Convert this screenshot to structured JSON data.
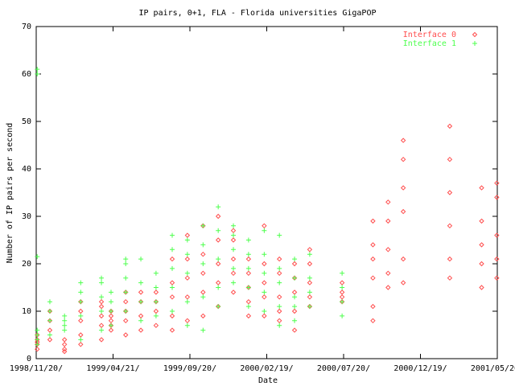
{
  "chart_data": {
    "type": "scatter",
    "title": "IP pairs, 0+1, FLA - Florida universities GigaPOP",
    "x_label": "Date",
    "y_label": "Number of IP pairs per second",
    "xlim": [
      "1998/11/20",
      "2001/05/20"
    ],
    "xticks": [
      {
        "value": "1998/11/20",
        "label": "1998/11/20/"
      },
      {
        "value": "1999/04/21",
        "label": "1999/04/21/"
      },
      {
        "value": "1999/09/20",
        "label": "1999/09/20/"
      },
      {
        "value": "2000/02/19",
        "label": "2000/02/19/"
      },
      {
        "value": "2000/07/20",
        "label": "2000/07/20/"
      },
      {
        "value": "2000/12/19",
        "label": "2000/12/19/"
      },
      {
        "value": "2001/05/20",
        "label": "2001/05/20/"
      }
    ],
    "ylim": [
      0,
      70
    ],
    "yticks": [
      0,
      10,
      20,
      30,
      40,
      50,
      60,
      70
    ],
    "legend": "top-right",
    "series": [
      {
        "name": "Interface 0",
        "color": "#ff4d4d",
        "marker": "diamond",
        "x": [
          "1998/11/22",
          "1998/11/22",
          "1998/11/22",
          "1998/11/22",
          "1998/11/22",
          "1998/12/17",
          "1998/12/17",
          "1998/12/17",
          "1998/12/17",
          "1999/01/15",
          "1999/01/15",
          "1999/01/15",
          "1999/01/15",
          "1999/02/16",
          "1999/02/16",
          "1999/02/16",
          "1999/02/16",
          "1999/02/16",
          "1999/03/29",
          "1999/03/29",
          "1999/03/29",
          "1999/03/29",
          "1999/03/29",
          "1999/04/17",
          "1999/04/17",
          "1999/04/17",
          "1999/04/17",
          "1999/04/17",
          "1999/05/16",
          "1999/05/16",
          "1999/05/16",
          "1999/05/16",
          "1999/05/16",
          "1999/06/15",
          "1999/06/15",
          "1999/06/15",
          "1999/06/15",
          "1999/07/15",
          "1999/07/15",
          "1999/07/15",
          "1999/07/15",
          "1999/08/16",
          "1999/08/16",
          "1999/08/16",
          "1999/08/16",
          "1999/08/16",
          "1999/09/15",
          "1999/09/15",
          "1999/09/15",
          "1999/09/15",
          "1999/09/15",
          "1999/10/16",
          "1999/10/16",
          "1999/10/16",
          "1999/10/16",
          "1999/10/16",
          "1999/11/15",
          "1999/11/15",
          "1999/11/15",
          "1999/11/15",
          "1999/11/15",
          "1999/12/15",
          "1999/12/15",
          "1999/12/15",
          "1999/12/15",
          "1999/12/15",
          "2000/01/14",
          "2000/01/14",
          "2000/01/14",
          "2000/01/14",
          "2000/01/14",
          "2000/02/14",
          "2000/02/14",
          "2000/02/14",
          "2000/02/14",
          "2000/02/14",
          "2000/03/15",
          "2000/03/15",
          "2000/03/15",
          "2000/03/15",
          "2000/03/15",
          "2000/04/14",
          "2000/04/14",
          "2000/04/14",
          "2000/04/14",
          "2000/04/14",
          "2000/05/14",
          "2000/05/14",
          "2000/05/14",
          "2000/05/14",
          "2000/05/14",
          "2000/07/17",
          "2000/07/17",
          "2000/07/17",
          "2000/07/17",
          "2000/09/16",
          "2000/09/16",
          "2000/09/16",
          "2000/09/16",
          "2000/09/16",
          "2000/09/16",
          "2000/10/16",
          "2000/10/16",
          "2000/10/16",
          "2000/10/16",
          "2000/10/16",
          "2000/11/15",
          "2000/11/15",
          "2000/11/15",
          "2000/11/15",
          "2000/11/15",
          "2000/11/15",
          "2001/02/15",
          "2001/02/15",
          "2001/02/15",
          "2001/02/15",
          "2001/02/15",
          "2001/02/15",
          "2001/04/19",
          "2001/04/19",
          "2001/04/19",
          "2001/04/19",
          "2001/04/19",
          "2001/05/19",
          "2001/05/19",
          "2001/05/19",
          "2001/05/19",
          "2001/05/19"
        ],
        "values": [
          2,
          3,
          3.5,
          4,
          5,
          4,
          6,
          8,
          10,
          1.5,
          2,
          3,
          4,
          3,
          5,
          8,
          10,
          12,
          4,
          7,
          9,
          11,
          12,
          6,
          7,
          8,
          9,
          10,
          5,
          8,
          10,
          12,
          14,
          6,
          9,
          12,
          14,
          7,
          10,
          12,
          14,
          6,
          9,
          13,
          16,
          21,
          8,
          13,
          17,
          21,
          26,
          9,
          14,
          18,
          22,
          28,
          11,
          16,
          20,
          25,
          30,
          14,
          18,
          21,
          25,
          27,
          9,
          12,
          15,
          18,
          21,
          9,
          13,
          16,
          20,
          28,
          8,
          10,
          13,
          18,
          21,
          6,
          10,
          14,
          17,
          20,
          11,
          13,
          16,
          20,
          23,
          12,
          13,
          14,
          16,
          8,
          11,
          17,
          21,
          24,
          29,
          15,
          18,
          23,
          29,
          33,
          16,
          21,
          31,
          36,
          42,
          46,
          17,
          21,
          28,
          35,
          42,
          49,
          15,
          20,
          24,
          29,
          36,
          17,
          21,
          26,
          34,
          37
        ]
      },
      {
        "name": "Interface 1",
        "color": "#4dff4d",
        "marker": "plus",
        "x": [
          "1998/11/22",
          "1998/11/22",
          "1998/11/22",
          "1998/11/22",
          "1998/11/22",
          "1998/11/22",
          "1998/11/22",
          "1998/12/17",
          "1998/12/17",
          "1998/12/17",
          "1998/12/17",
          "1999/01/15",
          "1999/01/15",
          "1999/01/15",
          "1999/01/15",
          "1999/02/16",
          "1999/02/16",
          "1999/02/16",
          "1999/02/16",
          "1999/02/16",
          "1999/03/29",
          "1999/03/29",
          "1999/03/29",
          "1999/03/29",
          "1999/03/29",
          "1999/04/17",
          "1999/04/17",
          "1999/04/17",
          "1999/04/17",
          "1999/05/16",
          "1999/05/16",
          "1999/05/16",
          "1999/05/16",
          "1999/05/16",
          "1999/06/15",
          "1999/06/15",
          "1999/06/15",
          "1999/06/15",
          "1999/07/15",
          "1999/07/15",
          "1999/07/15",
          "1999/07/15",
          "1999/08/16",
          "1999/08/16",
          "1999/08/16",
          "1999/08/16",
          "1999/08/16",
          "1999/09/15",
          "1999/09/15",
          "1999/09/15",
          "1999/09/15",
          "1999/09/15",
          "1999/10/16",
          "1999/10/16",
          "1999/10/16",
          "1999/10/16",
          "1999/10/16",
          "1999/11/15",
          "1999/11/15",
          "1999/11/15",
          "1999/11/15",
          "1999/11/15",
          "1999/12/15",
          "1999/12/15",
          "1999/12/15",
          "1999/12/15",
          "1999/12/15",
          "2000/01/14",
          "2000/01/14",
          "2000/01/14",
          "2000/01/14",
          "2000/01/14",
          "2000/02/14",
          "2000/02/14",
          "2000/02/14",
          "2000/02/14",
          "2000/02/14",
          "2000/03/15",
          "2000/03/15",
          "2000/03/15",
          "2000/03/15",
          "2000/03/15",
          "2000/04/14",
          "2000/04/14",
          "2000/04/14",
          "2000/04/14",
          "2000/04/14",
          "2000/05/14",
          "2000/05/14",
          "2000/05/14",
          "2000/05/14",
          "2000/07/17",
          "2000/07/17",
          "2000/07/17",
          "2000/07/17"
        ],
        "values": [
          3,
          4,
          5,
          6,
          21.5,
          60,
          61,
          5,
          8,
          10,
          12,
          6,
          7,
          8,
          9,
          4,
          9,
          12,
          14,
          16,
          6,
          10,
          13,
          16,
          17,
          7,
          10,
          12,
          14,
          10,
          14,
          17,
          20,
          21,
          8,
          12,
          16,
          21,
          9,
          12,
          15,
          18,
          10,
          15,
          19,
          23,
          26,
          7,
          12,
          18,
          22,
          25,
          6,
          13,
          20,
          24,
          28,
          11,
          15,
          21,
          27,
          32,
          16,
          19,
          23,
          26,
          28,
          11,
          15,
          19,
          22,
          25,
          10,
          14,
          18,
          22,
          27,
          7,
          11,
          16,
          19,
          26,
          8,
          11,
          13,
          17,
          21,
          11,
          14,
          17,
          22,
          9,
          12,
          15,
          18
        ]
      }
    ]
  }
}
